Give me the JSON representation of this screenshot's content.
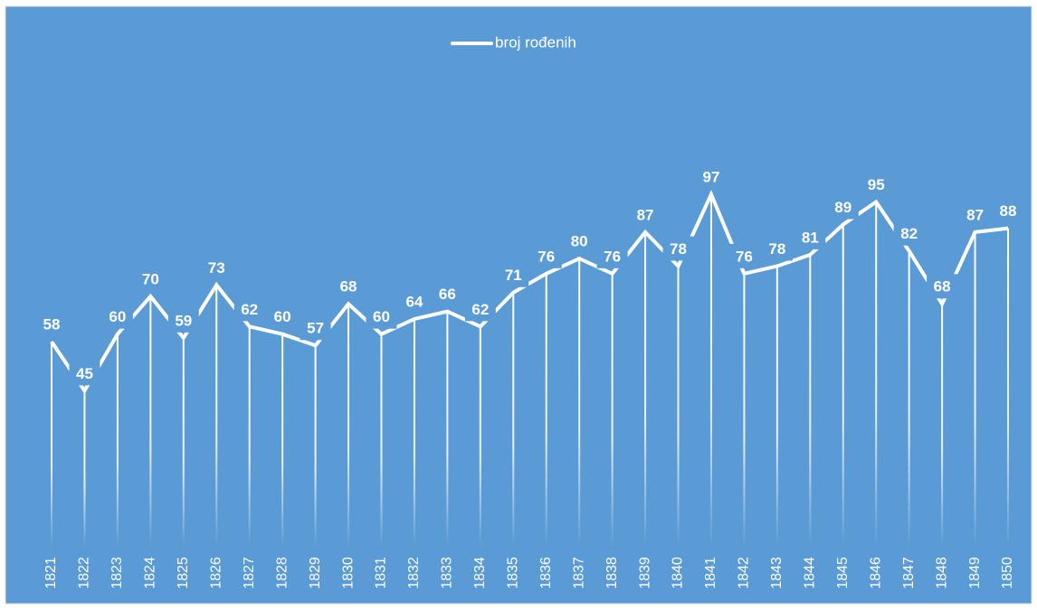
{
  "chart_data": {
    "type": "line",
    "categories": [
      "1821",
      "1822",
      "1823",
      "1824",
      "1825",
      "1826",
      "1827",
      "1828",
      "1829",
      "1830",
      "1831",
      "1832",
      "1833",
      "1834",
      "1835",
      "1836",
      "1837",
      "1838",
      "1839",
      "1840",
      "1841",
      "1842",
      "1843",
      "1844",
      "1845",
      "1846",
      "1847",
      "1848",
      "1849",
      "1850"
    ],
    "series": [
      {
        "name": "broj rođenih",
        "color": "#ffffff",
        "values": [
          58,
          45,
          60,
          70,
          59,
          73,
          62,
          60,
          57,
          68,
          60,
          64,
          66,
          62,
          71,
          76,
          80,
          76,
          87,
          78,
          97,
          76,
          78,
          81,
          89,
          95,
          82,
          68,
          87,
          88
        ]
      }
    ],
    "ylim": [
      0,
      100
    ],
    "legend": "top",
    "background": "#5b9bd5"
  }
}
